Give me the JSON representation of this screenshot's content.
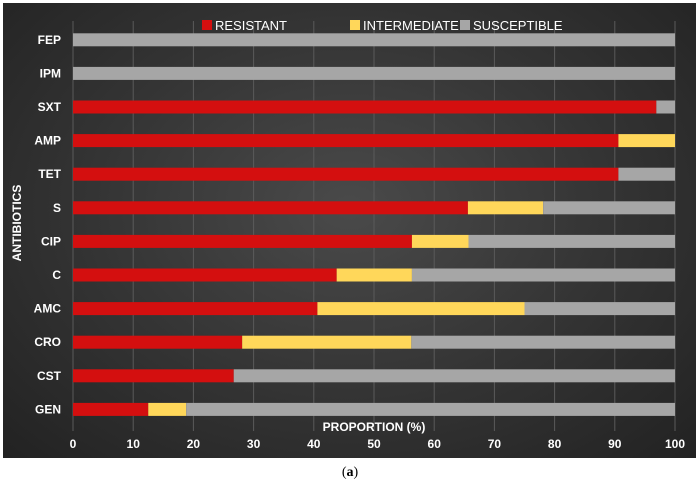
{
  "caption": {
    "open": "(",
    "letter": "a",
    "close": ")"
  },
  "chart_data": {
    "type": "bar",
    "orientation": "horizontal",
    "stacked": true,
    "categories": [
      "FEP",
      "IPM",
      "SXT",
      "AMP",
      "TET",
      "S",
      "CIP",
      "C",
      "AMC",
      "CRO",
      "CST",
      "GEN"
    ],
    "series": [
      {
        "name": "RESISTANT",
        "color": "#d40f0f",
        "values": [
          0,
          0,
          96.9,
          90.6,
          90.6,
          65.6,
          56.3,
          43.8,
          40.6,
          28.1,
          26.7,
          12.5
        ]
      },
      {
        "name": "INTERMEDIATE",
        "color": "#ffd75a",
        "values": [
          0,
          0,
          0,
          9.4,
          0,
          12.5,
          9.4,
          12.5,
          34.4,
          28.1,
          0,
          6.3
        ]
      },
      {
        "name": "SUSCEPTIBLE",
        "color": "#a6a6a6",
        "values": [
          100,
          100,
          3.1,
          0,
          9.4,
          21.9,
          34.3,
          43.7,
          25.0,
          43.8,
          73.3,
          81.2
        ]
      }
    ],
    "xlabel": "PROPORTION (%)",
    "ylabel": "ANTIBIOTICS",
    "xlim": [
      0,
      100
    ],
    "xticks": [
      0,
      10,
      20,
      30,
      40,
      50,
      60,
      70,
      80,
      90,
      100
    ],
    "grid": true,
    "legend_position": "top"
  }
}
